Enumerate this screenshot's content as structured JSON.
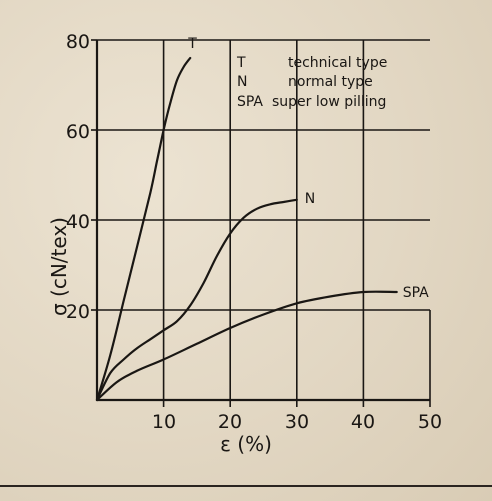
{
  "chart_data": {
    "type": "line",
    "xlabel": "ε  (%)",
    "ylabel": "σ   (cN/tex)",
    "xlim": [
      0,
      50
    ],
    "ylim": [
      0,
      80
    ],
    "xticks": [
      "10",
      "20",
      "30",
      "40",
      "50"
    ],
    "yticks": [
      "20",
      "40",
      "60",
      "80"
    ],
    "grid": true,
    "legend_position": "top-right",
    "legend": [
      {
        "code": "T",
        "text": "technical type"
      },
      {
        "code": "N",
        "text": "normal type"
      },
      {
        "code": "SPA",
        "text": "super low pilling"
      }
    ],
    "series": [
      {
        "name": "T",
        "x": [
          0,
          2,
          4,
          6,
          8,
          9,
          10,
          11,
          12,
          13,
          14
        ],
        "y": [
          0,
          10,
          22,
          34,
          46,
          53,
          60,
          66,
          71,
          74,
          76
        ]
      },
      {
        "name": "N",
        "x": [
          0,
          2,
          4,
          6,
          8,
          10,
          12,
          14,
          16,
          18,
          20,
          22,
          24,
          26,
          28,
          30
        ],
        "y": [
          0,
          6,
          9,
          11.5,
          13.5,
          15.5,
          17.5,
          21,
          26,
          32,
          37,
          40.5,
          42.5,
          43.5,
          44,
          44.5
        ]
      },
      {
        "name": "SPA",
        "x": [
          0,
          3,
          6,
          10,
          15,
          20,
          25,
          30,
          35,
          40,
          45
        ],
        "y": [
          0,
          4,
          6.5,
          9,
          12.5,
          16,
          19,
          21.5,
          23,
          24,
          24
        ]
      }
    ]
  }
}
